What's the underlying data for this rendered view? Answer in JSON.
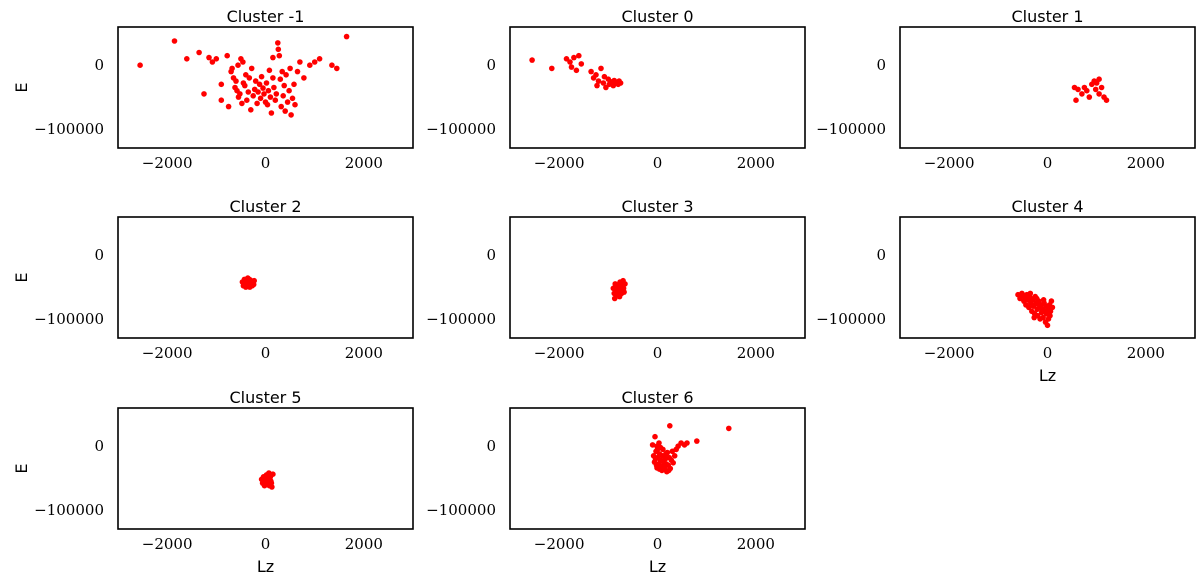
{
  "figure": {
    "point_color": "#ff0000",
    "grid": false,
    "legend": "none",
    "columns": 3
  },
  "chart_data": [
    {
      "type": "scatter",
      "title": "Cluster -1",
      "xlabel": "",
      "ylabel": "E",
      "xlim": [
        -3000,
        3000
      ],
      "ylim": [
        -130000,
        60000
      ],
      "xticks": [
        "-2000",
        "0",
        "2000"
      ],
      "yticks": [
        "0",
        "-100000"
      ],
      "points": [
        [
          -2550,
          0
        ],
        [
          -1850,
          38000
        ],
        [
          -1350,
          20000
        ],
        [
          -1150,
          12000
        ],
        [
          -1080,
          5000
        ],
        [
          -1000,
          10000
        ],
        [
          -1250,
          -45000
        ],
        [
          -900,
          -30000
        ],
        [
          -780,
          15000
        ],
        [
          -700,
          -10000
        ],
        [
          -650,
          -20000
        ],
        [
          -600,
          -25000
        ],
        [
          -620,
          -35000
        ],
        [
          -580,
          -40000
        ],
        [
          -550,
          -50000
        ],
        [
          -520,
          -45000
        ],
        [
          -500,
          10000
        ],
        [
          -480,
          -60000
        ],
        [
          -450,
          -28000
        ],
        [
          -420,
          -32000
        ],
        [
          -400,
          -15000
        ],
        [
          -380,
          -55000
        ],
        [
          -350,
          -42000
        ],
        [
          -330,
          -20000
        ],
        [
          -300,
          -70000
        ],
        [
          -280,
          -5000
        ],
        [
          -250,
          -48000
        ],
        [
          -220,
          -38000
        ],
        [
          -200,
          -25000
        ],
        [
          -170,
          -60000
        ],
        [
          -150,
          -42000
        ],
        [
          -120,
          -30000
        ],
        [
          -100,
          -52000
        ],
        [
          -80,
          -18000
        ],
        [
          -50,
          -36000
        ],
        [
          -30,
          -45000
        ],
        [
          0,
          -58000
        ],
        [
          20,
          -28000
        ],
        [
          40,
          -62000
        ],
        [
          60,
          -40000
        ],
        [
          80,
          -8000
        ],
        [
          100,
          -50000
        ],
        [
          120,
          -75000
        ],
        [
          150,
          -20000
        ],
        [
          170,
          -35000
        ],
        [
          200,
          -55000
        ],
        [
          220,
          -45000
        ],
        [
          250,
          35000
        ],
        [
          260,
          25000
        ],
        [
          280,
          15000
        ],
        [
          300,
          -22000
        ],
        [
          320,
          -65000
        ],
        [
          340,
          -10000
        ],
        [
          360,
          -48000
        ],
        [
          380,
          -32000
        ],
        [
          400,
          -72000
        ],
        [
          420,
          -15000
        ],
        [
          450,
          -58000
        ],
        [
          480,
          -40000
        ],
        [
          500,
          -5000
        ],
        [
          520,
          -78000
        ],
        [
          550,
          -52000
        ],
        [
          580,
          -30000
        ],
        [
          600,
          -62000
        ],
        [
          650,
          -10000
        ],
        [
          700,
          5000
        ],
        [
          780,
          -20000
        ],
        [
          900,
          0
        ],
        [
          1000,
          5000
        ],
        [
          1100,
          10000
        ],
        [
          1350,
          0
        ],
        [
          1450,
          -5000
        ],
        [
          1650,
          45000
        ],
        [
          -1600,
          10000
        ],
        [
          -900,
          -55000
        ],
        [
          -750,
          -65000
        ],
        [
          -680,
          -5000
        ],
        [
          -560,
          0
        ],
        [
          -460,
          5000
        ],
        [
          150,
          12000
        ]
      ]
    },
    {
      "type": "scatter",
      "title": "Cluster 0",
      "xlabel": "",
      "ylabel": "",
      "xlim": [
        -3000,
        3000
      ],
      "ylim": [
        -130000,
        60000
      ],
      "xticks": [
        "-2000",
        "0",
        "2000"
      ],
      "yticks": [
        "0",
        "-100000"
      ],
      "points": [
        [
          -2550,
          8000
        ],
        [
          -2150,
          -5000
        ],
        [
          -1850,
          10000
        ],
        [
          -1780,
          5000
        ],
        [
          -1750,
          -3000
        ],
        [
          -1700,
          12000
        ],
        [
          -1650,
          -8000
        ],
        [
          -1600,
          15000
        ],
        [
          -1550,
          2000
        ],
        [
          -1350,
          -10000
        ],
        [
          -1300,
          -20000
        ],
        [
          -1250,
          -15000
        ],
        [
          -1230,
          -32000
        ],
        [
          -1200,
          -25000
        ],
        [
          -1150,
          -5000
        ],
        [
          -1100,
          -28000
        ],
        [
          -1080,
          -18000
        ],
        [
          -1050,
          -35000
        ],
        [
          -1000,
          -22000
        ],
        [
          -980,
          -30000
        ],
        [
          -950,
          -26000
        ],
        [
          -900,
          -32000
        ],
        [
          -880,
          -24000
        ],
        [
          -850,
          -28000
        ],
        [
          -800,
          -30000
        ],
        [
          -780,
          -25000
        ],
        [
          -750,
          -28000
        ]
      ]
    },
    {
      "type": "scatter",
      "title": "Cluster 1",
      "xlabel": "",
      "ylabel": "",
      "xlim": [
        -3000,
        3000
      ],
      "ylim": [
        -130000,
        60000
      ],
      "xticks": [
        "-2000",
        "0",
        "2000"
      ],
      "yticks": [
        "0",
        "-100000"
      ],
      "points": [
        [
          550,
          -35000
        ],
        [
          580,
          -55000
        ],
        [
          620,
          -38000
        ],
        [
          700,
          -45000
        ],
        [
          750,
          -35000
        ],
        [
          800,
          -40000
        ],
        [
          850,
          -50000
        ],
        [
          900,
          -30000
        ],
        [
          950,
          -25000
        ],
        [
          980,
          -38000
        ],
        [
          1000,
          -28000
        ],
        [
          1050,
          -45000
        ],
        [
          1100,
          -35000
        ],
        [
          1150,
          -50000
        ],
        [
          1200,
          -55000
        ],
        [
          1050,
          -22000
        ]
      ]
    },
    {
      "type": "scatter",
      "title": "Cluster 2",
      "xlabel": "",
      "ylabel": "E",
      "xlim": [
        -3000,
        3000
      ],
      "ylim": [
        -130000,
        60000
      ],
      "xticks": [
        "-2000",
        "0",
        "2000"
      ],
      "yticks": [
        "0",
        "-100000"
      ],
      "points": [
        [
          -470,
          -42000
        ],
        [
          -450,
          -48000
        ],
        [
          -430,
          -38000
        ],
        [
          -410,
          -45000
        ],
        [
          -400,
          -50000
        ],
        [
          -390,
          -40000
        ],
        [
          -380,
          -44000
        ],
        [
          -360,
          -36000
        ],
        [
          -350,
          -47000
        ],
        [
          -340,
          -42000
        ],
        [
          -320,
          -50000
        ],
        [
          -310,
          -39000
        ],
        [
          -300,
          -45000
        ],
        [
          -290,
          -41000
        ],
        [
          -270,
          -48000
        ],
        [
          -260,
          -43000
        ],
        [
          -240,
          -46000
        ],
        [
          -230,
          -40000
        ],
        [
          -420,
          -46000
        ],
        [
          -330,
          -38000
        ]
      ]
    },
    {
      "type": "scatter",
      "title": "Cluster 3",
      "xlabel": "",
      "ylabel": "",
      "xlim": [
        -3000,
        3000
      ],
      "ylim": [
        -130000,
        60000
      ],
      "xticks": [
        "-2000",
        "0",
        "2000"
      ],
      "yticks": [
        "0",
        "-100000"
      ],
      "points": [
        [
          -900,
          -52000
        ],
        [
          -880,
          -60000
        ],
        [
          -870,
          -68000
        ],
        [
          -860,
          -45000
        ],
        [
          -850,
          -55000
        ],
        [
          -830,
          -62000
        ],
        [
          -820,
          -48000
        ],
        [
          -800,
          -58000
        ],
        [
          -790,
          -50000
        ],
        [
          -770,
          -65000
        ],
        [
          -760,
          -42000
        ],
        [
          -750,
          -54000
        ],
        [
          -730,
          -60000
        ],
        [
          -720,
          -47000
        ],
        [
          -700,
          -40000
        ],
        [
          -690,
          -52000
        ],
        [
          -680,
          -58000
        ],
        [
          -660,
          -45000
        ]
      ]
    },
    {
      "type": "scatter",
      "title": "Cluster 4",
      "xlabel": "Lz",
      "ylabel": "",
      "xlim": [
        -3000,
        3000
      ],
      "ylim": [
        -130000,
        60000
      ],
      "xticks": [
        "-2000",
        "0",
        "2000"
      ],
      "yticks": [
        "0",
        "-100000"
      ],
      "points": [
        [
          -600,
          -62000
        ],
        [
          -560,
          -68000
        ],
        [
          -520,
          -60000
        ],
        [
          -480,
          -72000
        ],
        [
          -460,
          -65000
        ],
        [
          -440,
          -78000
        ],
        [
          -420,
          -62000
        ],
        [
          -400,
          -70000
        ],
        [
          -380,
          -82000
        ],
        [
          -360,
          -66000
        ],
        [
          -340,
          -75000
        ],
        [
          -320,
          -88000
        ],
        [
          -300,
          -70000
        ],
        [
          -280,
          -80000
        ],
        [
          -260,
          -92000
        ],
        [
          -250,
          -65000
        ],
        [
          -230,
          -76000
        ],
        [
          -210,
          -85000
        ],
        [
          -200,
          -95000
        ],
        [
          -180,
          -72000
        ],
        [
          -160,
          -82000
        ],
        [
          -150,
          -100000
        ],
        [
          -130,
          -78000
        ],
        [
          -120,
          -90000
        ],
        [
          -100,
          -85000
        ],
        [
          -90,
          -98000
        ],
        [
          -70,
          -75000
        ],
        [
          -60,
          -88000
        ],
        [
          -40,
          -105000
        ],
        [
          -30,
          -80000
        ],
        [
          -20,
          -92000
        ],
        [
          0,
          -110000
        ],
        [
          10,
          -85000
        ],
        [
          20,
          -100000
        ],
        [
          40,
          -78000
        ],
        [
          50,
          -95000
        ],
        [
          60,
          -88000
        ],
        [
          80,
          -72000
        ],
        [
          100,
          -82000
        ],
        [
          -500,
          -64000
        ],
        [
          -350,
          -60000
        ],
        [
          -220,
          -68000
        ],
        [
          -80,
          -70000
        ],
        [
          30,
          -90000
        ],
        [
          -270,
          -98000
        ]
      ]
    },
    {
      "type": "scatter",
      "title": "Cluster 5",
      "xlabel": "Lz",
      "ylabel": "E",
      "xlim": [
        -3000,
        3000
      ],
      "ylim": [
        -130000,
        60000
      ],
      "xticks": [
        "-2000",
        "0",
        "2000"
      ],
      "yticks": [
        "0",
        "-100000"
      ],
      "points": [
        [
          -80,
          -52000
        ],
        [
          -60,
          -58000
        ],
        [
          -40,
          -48000
        ],
        [
          -20,
          -62000
        ],
        [
          0,
          -55000
        ],
        [
          20,
          -45000
        ],
        [
          30,
          -60000
        ],
        [
          40,
          -50000
        ],
        [
          60,
          -57000
        ],
        [
          70,
          -42000
        ],
        [
          80,
          -62000
        ],
        [
          100,
          -48000
        ],
        [
          110,
          -55000
        ],
        [
          130,
          -64000
        ],
        [
          150,
          -44000
        ],
        [
          -50,
          -55000
        ],
        [
          90,
          -52000
        ],
        [
          120,
          -58000
        ]
      ]
    },
    {
      "type": "scatter",
      "title": "Cluster 6",
      "xlabel": "Lz",
      "ylabel": "",
      "xlim": [
        -3000,
        3000
      ],
      "ylim": [
        -130000,
        60000
      ],
      "xticks": [
        "-2000",
        "0",
        "2000"
      ],
      "yticks": [
        "0",
        "-100000"
      ],
      "points": [
        [
          -100,
          2000
        ],
        [
          -50,
          15000
        ],
        [
          0,
          -5000
        ],
        [
          30,
          5000
        ],
        [
          -80,
          -15000
        ],
        [
          -60,
          -25000
        ],
        [
          -40,
          -20000
        ],
        [
          -20,
          -30000
        ],
        [
          0,
          -18000
        ],
        [
          20,
          -28000
        ],
        [
          40,
          -12000
        ],
        [
          60,
          -22000
        ],
        [
          80,
          -32000
        ],
        [
          100,
          -15000
        ],
        [
          120,
          -25000
        ],
        [
          140,
          -35000
        ],
        [
          160,
          -20000
        ],
        [
          180,
          -28000
        ],
        [
          200,
          -10000
        ],
        [
          220,
          -30000
        ],
        [
          240,
          -18000
        ],
        [
          260,
          -35000
        ],
        [
          280,
          -22000
        ],
        [
          300,
          -8000
        ],
        [
          320,
          -26000
        ],
        [
          350,
          -15000
        ],
        [
          380,
          -5000
        ],
        [
          420,
          0
        ],
        [
          480,
          5000
        ],
        [
          550,
          2000
        ],
        [
          600,
          5000
        ],
        [
          800,
          8000
        ],
        [
          1450,
          28000
        ],
        [
          250,
          32000
        ],
        [
          -10,
          0
        ],
        [
          60,
          -2000
        ],
        [
          -30,
          -8000
        ],
        [
          110,
          -5000
        ],
        [
          170,
          -12000
        ],
        [
          230,
          -38000
        ],
        [
          190,
          -40000
        ],
        [
          90,
          -38000
        ],
        [
          150,
          -30000
        ],
        [
          40,
          -36000
        ],
        [
          -10,
          -34000
        ]
      ]
    }
  ]
}
